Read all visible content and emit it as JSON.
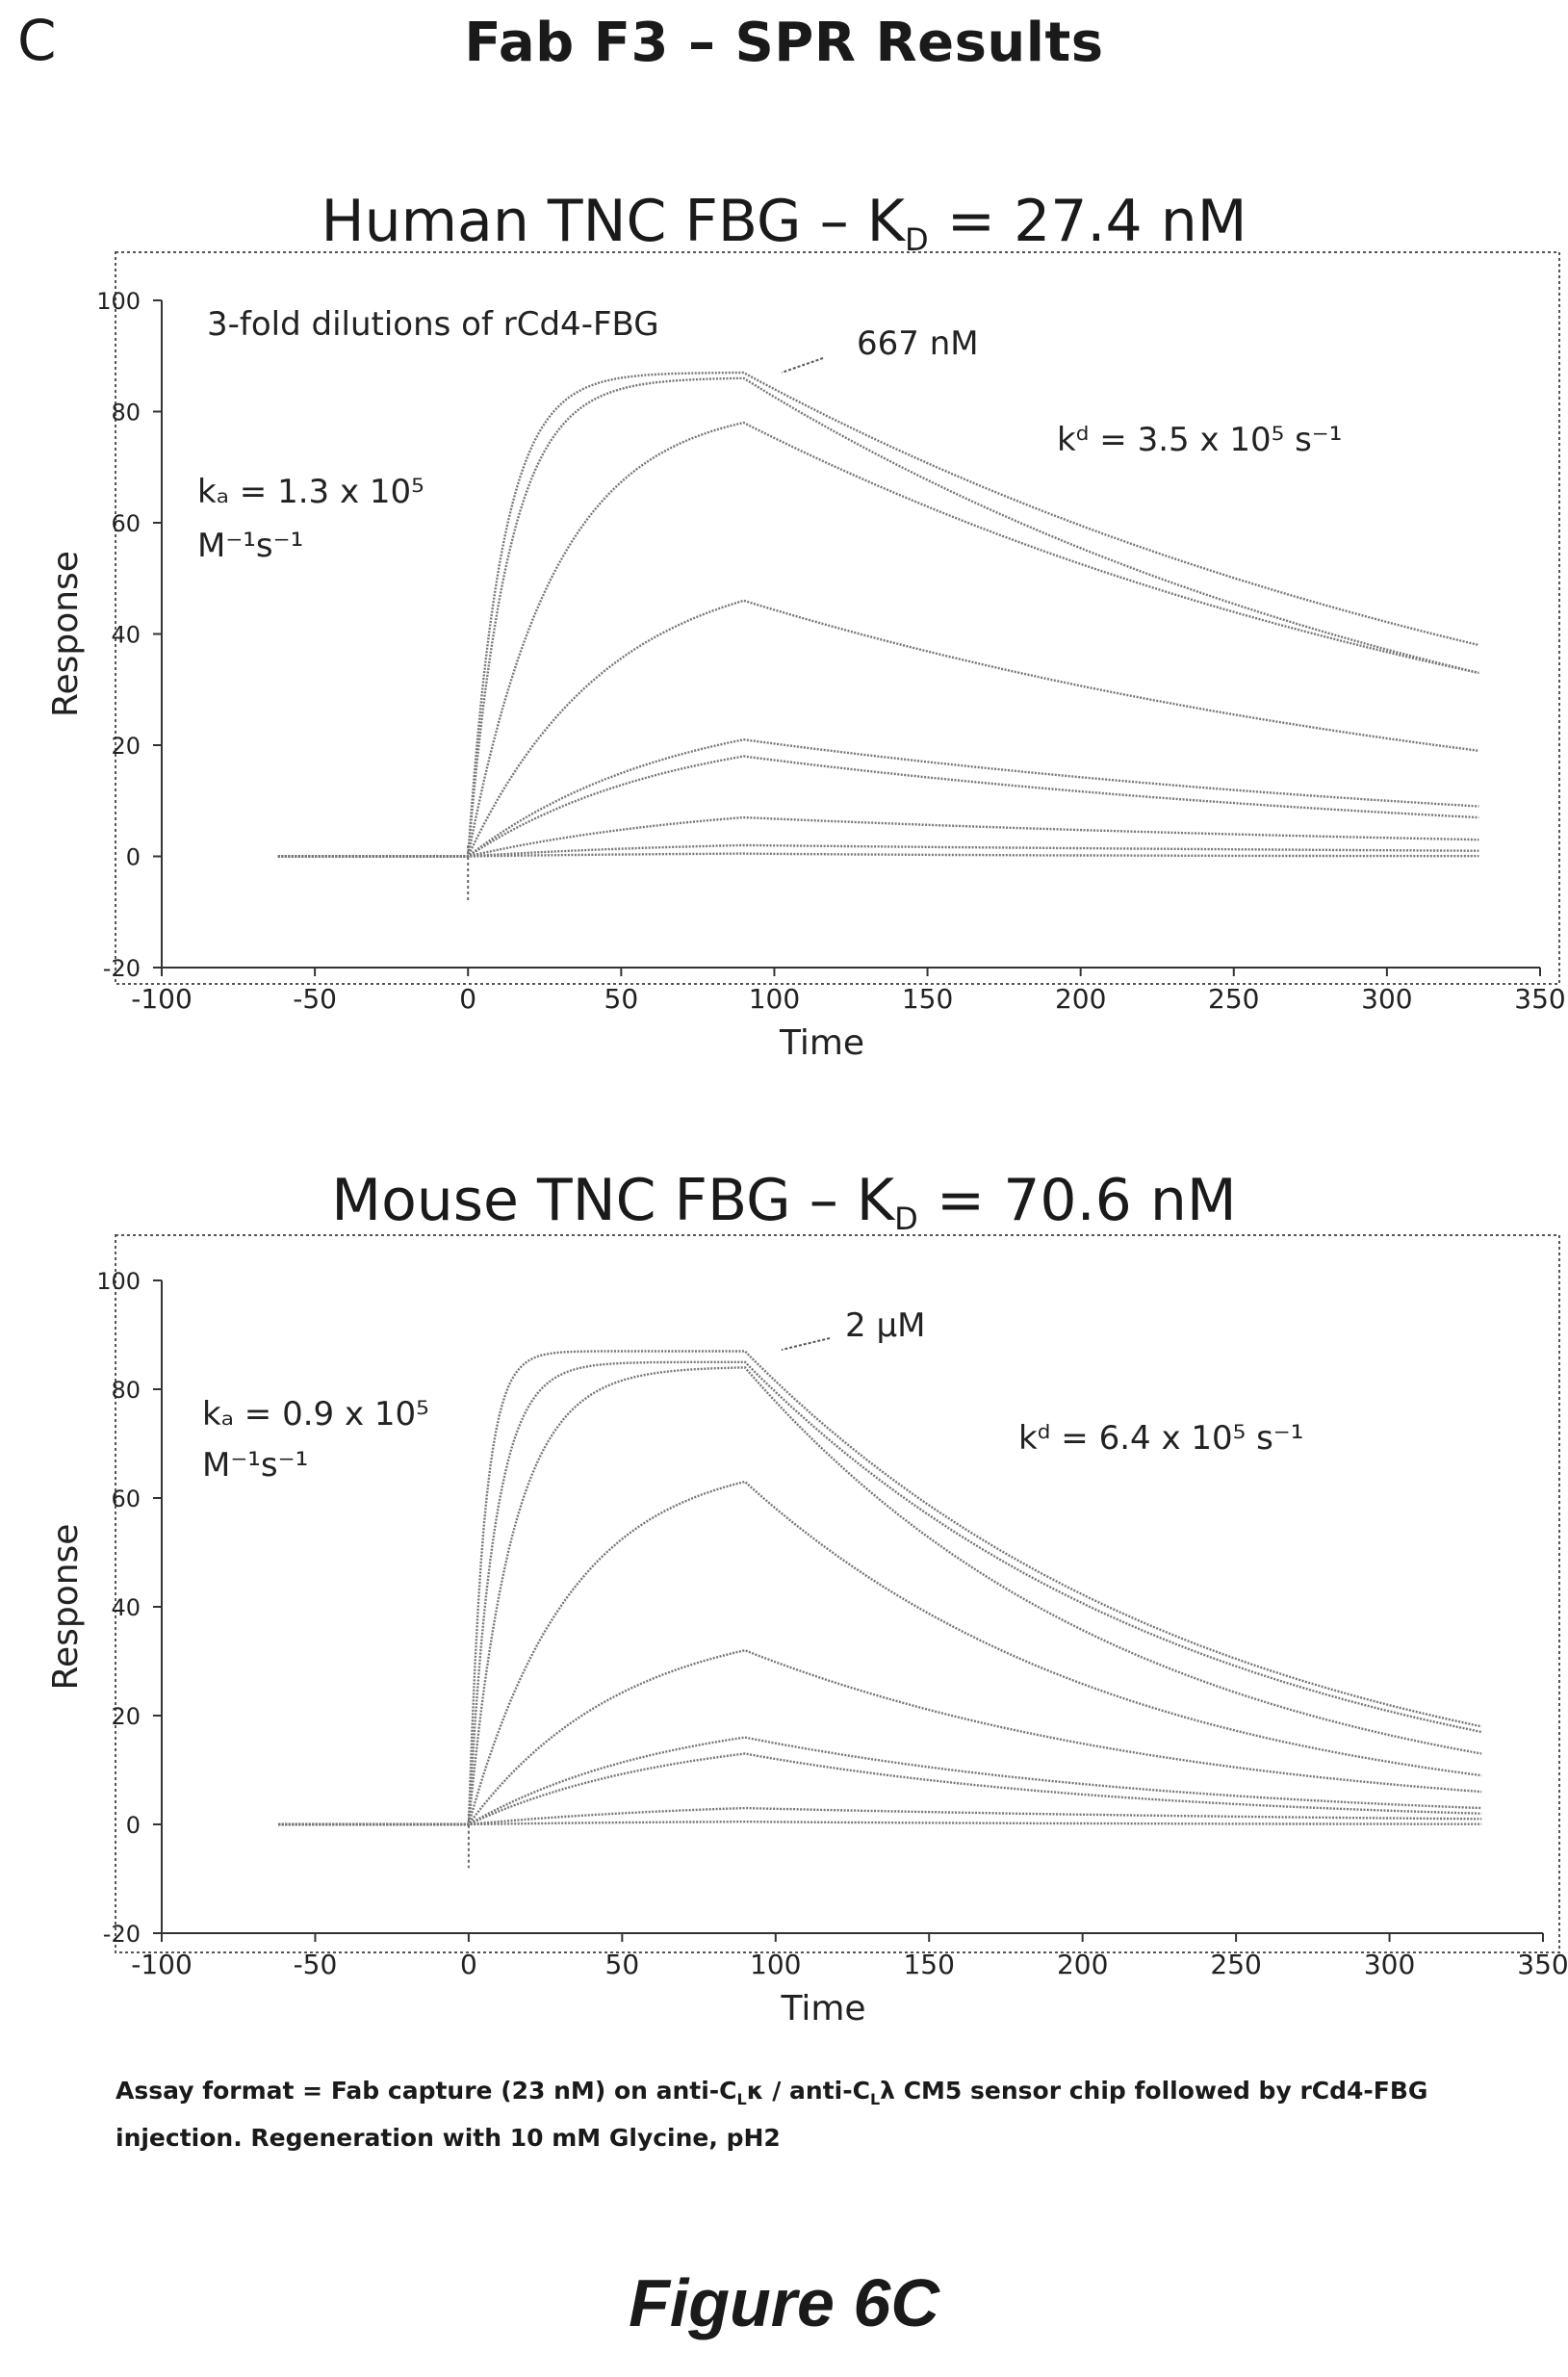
{
  "header": {
    "panel_letter": "C",
    "title": "Fab F3 – SPR Results"
  },
  "chart_data": [
    {
      "type": "line",
      "title_main": "Human TNC FBG – K",
      "title_sub": "D",
      "title_tail": " = 27.4 nM",
      "xlabel": "Time",
      "ylabel": "Response",
      "xlim": [
        -100,
        350
      ],
      "ylim": [
        -20,
        100
      ],
      "xticks": [
        -100,
        -50,
        0,
        50,
        100,
        150,
        200,
        250,
        300,
        350
      ],
      "yticks": [
        -20,
        0,
        20,
        40,
        60,
        80,
        100
      ],
      "grid": false,
      "series_color": "#777777",
      "annotations": {
        "dilution_note": "3-fold dilutions of rCd4-FBG",
        "top_conc": "667 nM",
        "ka_line1": "kₐ = 1.3 x 10⁵",
        "ka_line2": "M⁻¹s⁻¹",
        "kd_text": "kᵈ = 3.5 x 10⁵ s⁻¹"
      },
      "injection": {
        "start": 0,
        "end": 90,
        "stop": 330,
        "baseline_start": -62
      },
      "series": [
        {
          "plateau": 87,
          "end_value": 38,
          "k_on": 0.09
        },
        {
          "plateau": 86,
          "end_value": 33,
          "k_on": 0.075
        },
        {
          "plateau": 78,
          "end_value": 33,
          "k_on": 0.035
        },
        {
          "plateau": 46,
          "end_value": 19,
          "k_on": 0.022
        },
        {
          "plateau": 21,
          "end_value": 9,
          "k_on": 0.015
        },
        {
          "plateau": 18,
          "end_value": 7,
          "k_on": 0.015
        },
        {
          "plateau": 7,
          "end_value": 3,
          "k_on": 0.012
        },
        {
          "plateau": 2,
          "end_value": 1,
          "k_on": 0.012
        },
        {
          "plateau": 0.5,
          "end_value": 0,
          "k_on": 0.012
        }
      ]
    },
    {
      "type": "line",
      "title_main": "Mouse TNC FBG – K",
      "title_sub": "D",
      "title_tail": " = 70.6 nM",
      "xlabel": "Time",
      "ylabel": "Response",
      "xlim": [
        -100,
        350
      ],
      "ylim": [
        -20,
        100
      ],
      "xticks": [
        -100,
        -50,
        0,
        50,
        100,
        150,
        200,
        250,
        300,
        350
      ],
      "yticks": [
        -20,
        0,
        20,
        40,
        60,
        80,
        100
      ],
      "grid": false,
      "series_color": "#777777",
      "annotations": {
        "top_conc": "2 µM",
        "ka_line1": "kₐ = 0.9 x 10⁵",
        "ka_line2": "M⁻¹s⁻¹",
        "kd_text": "kᵈ = 6.4 x 10⁵ s⁻¹"
      },
      "injection": {
        "start": 0,
        "end": 90,
        "stop": 330,
        "baseline_start": -62
      },
      "series": [
        {
          "plateau": 87,
          "end_value": 18,
          "k_on": 0.2
        },
        {
          "plateau": 85,
          "end_value": 17,
          "k_on": 0.12
        },
        {
          "plateau": 84,
          "end_value": 13,
          "k_on": 0.07
        },
        {
          "plateau": 63,
          "end_value": 9,
          "k_on": 0.03
        },
        {
          "plateau": 32,
          "end_value": 6,
          "k_on": 0.02
        },
        {
          "plateau": 16,
          "end_value": 3,
          "k_on": 0.015
        },
        {
          "plateau": 13,
          "end_value": 2,
          "k_on": 0.015
        },
        {
          "plateau": 3,
          "end_value": 1,
          "k_on": 0.012
        },
        {
          "plateau": 0.5,
          "end_value": 0,
          "k_on": 0.012
        }
      ]
    }
  ],
  "caption": {
    "text_1": "Assay format = Fab capture (23 nM) on anti-C",
    "sub_1": "L",
    "text_2": "κ / anti-C",
    "sub_2": "L",
    "text_3": "λ CM5 sensor chip followed by rCd4-FBG injection. Regeneration with 10 mM Glycine, pH2"
  },
  "figure_label": "Figure 6C"
}
